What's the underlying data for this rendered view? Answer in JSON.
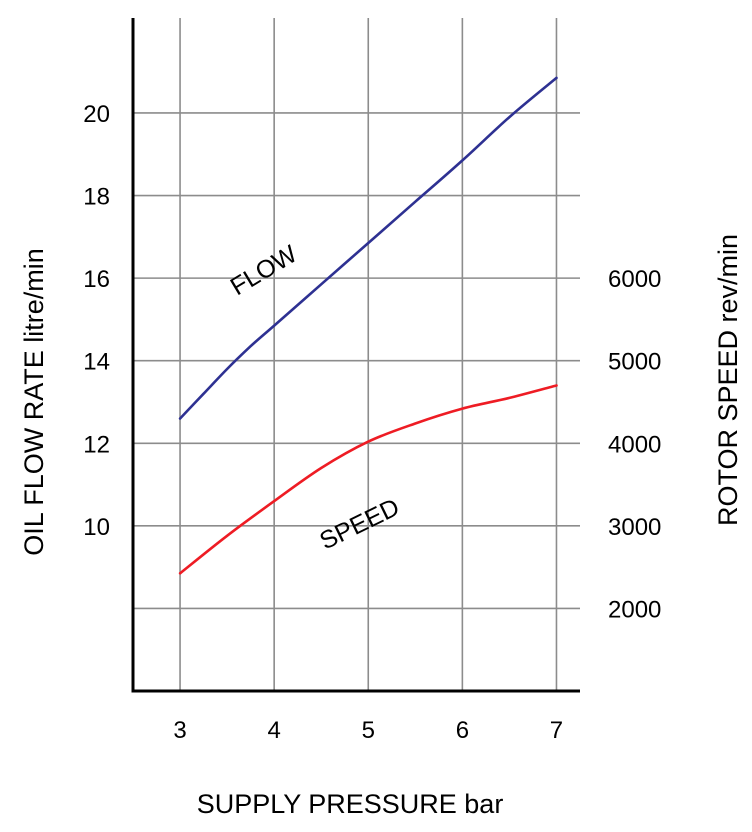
{
  "chart_data": {
    "type": "line",
    "xlabel": "SUPPLY PRESSURE bar",
    "ylabel": "OIL FLOW RATE litre/min",
    "y2label": "ROTOR SPEED rev/min",
    "x_ticks": [
      "3",
      "4",
      "5",
      "6",
      "7"
    ],
    "y_ticks": [
      "10",
      "12",
      "14",
      "16",
      "18",
      "20"
    ],
    "y2_ticks": [
      "2000",
      "3000",
      "4000",
      "5000",
      "6000"
    ],
    "xlim": [
      2.5,
      7.25
    ],
    "ylim": [
      6,
      22.3
    ],
    "y2lim": [
      1000,
      9150
    ],
    "grid": true,
    "series": [
      {
        "name": "FLOW",
        "axis": "left",
        "color": "#2e3192",
        "x": [
          3,
          3.25,
          3.5,
          3.75,
          4,
          4.5,
          5,
          5.5,
          6,
          6.5,
          7
        ],
        "y": [
          12.6,
          13.2,
          13.8,
          14.35,
          14.85,
          15.85,
          16.85,
          17.85,
          18.85,
          19.9,
          20.85
        ]
      },
      {
        "name": "SPEED",
        "axis": "right",
        "color": "#ee1c24",
        "x": [
          3,
          3.5,
          4,
          4.5,
          5,
          5.5,
          6,
          6.5,
          7
        ],
        "y": [
          2425,
          2880,
          3300,
          3700,
          4020,
          4240,
          4420,
          4550,
          4700
        ]
      }
    ]
  }
}
